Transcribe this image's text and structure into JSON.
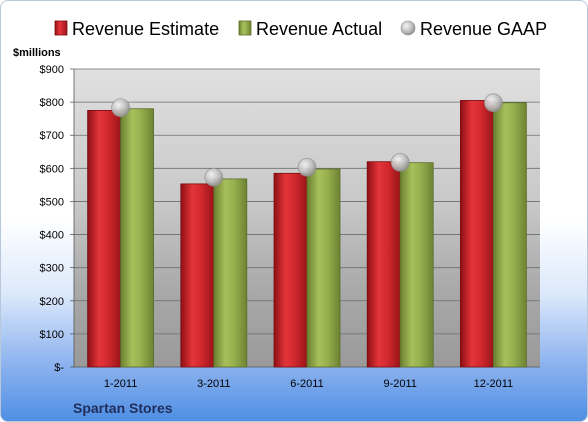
{
  "chart_data": {
    "type": "bar",
    "unit_label": "$millions",
    "categories": [
      "1-2011",
      "3-2011",
      "6-2011",
      "9-2011",
      "12-2011"
    ],
    "series": [
      {
        "name": "Revenue Estimate",
        "type": "bar",
        "color": "#cc1f26",
        "values": [
          775,
          553,
          585,
          620,
          805
        ]
      },
      {
        "name": "Revenue Actual",
        "type": "bar",
        "color": "#8fa64a",
        "values": [
          780,
          568,
          598,
          617,
          798
        ]
      },
      {
        "name": "Revenue GAAP",
        "type": "marker",
        "color": "#b8b8b8",
        "values": [
          783,
          573,
          603,
          618,
          798
        ]
      }
    ],
    "ylim": [
      0,
      900
    ],
    "yticks": [
      {
        "value": 0,
        "label": "$-"
      },
      {
        "value": 100,
        "label": "$100"
      },
      {
        "value": 200,
        "label": "$200"
      },
      {
        "value": 300,
        "label": "$300"
      },
      {
        "value": 400,
        "label": "$400"
      },
      {
        "value": 500,
        "label": "$500"
      },
      {
        "value": 600,
        "label": "$600"
      },
      {
        "value": 700,
        "label": "$700"
      },
      {
        "value": 800,
        "label": "$800"
      },
      {
        "value": 900,
        "label": "$900"
      }
    ],
    "grid": true,
    "legend_position": "top",
    "footer_label": "Spartan Stores"
  }
}
